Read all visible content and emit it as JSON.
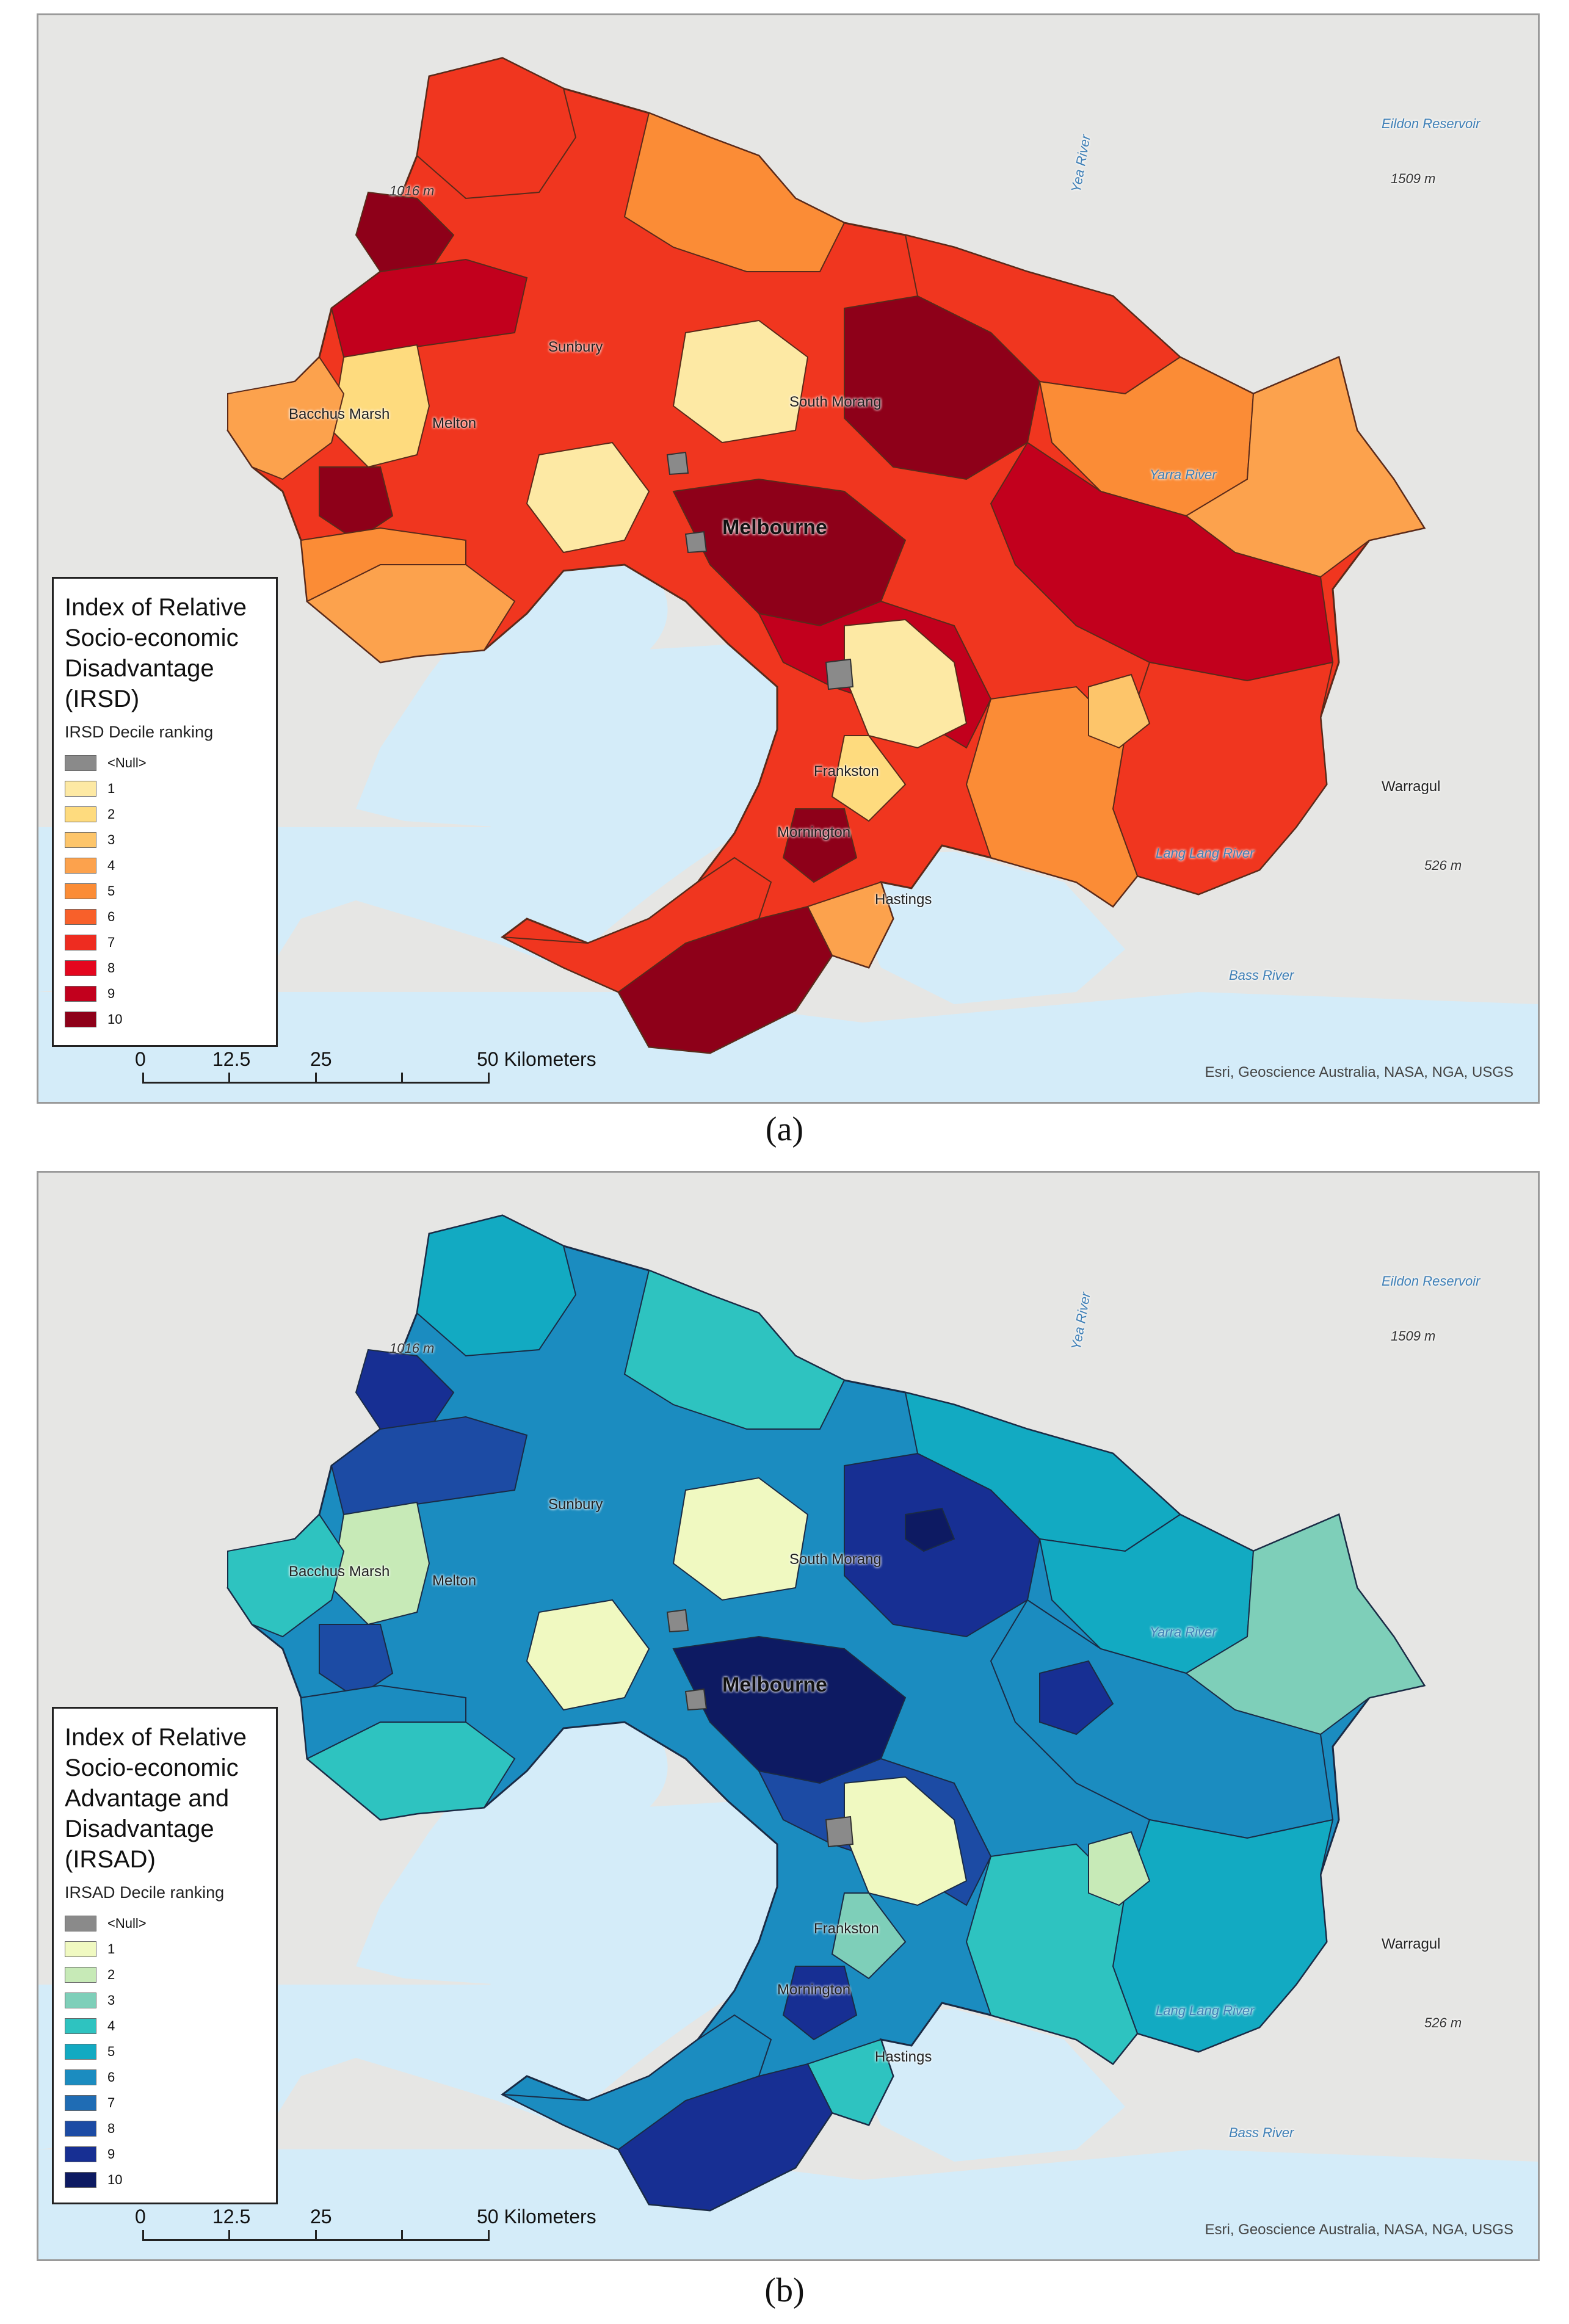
{
  "panels": [
    {
      "id": "a",
      "caption": "(a)",
      "legend": {
        "title": "Index of Relative Socio-economic Disadvantage (IRSD)",
        "subtitle": "IRSD Decile ranking",
        "null_label": "<Null>",
        "deciles": [
          "1",
          "2",
          "3",
          "4",
          "5",
          "6",
          "7",
          "8",
          "9",
          "10"
        ],
        "colors": [
          "#8a8a8a",
          "#fde9a4",
          "#fedb7e",
          "#fdc56a",
          "#fca24d",
          "#fb8c36",
          "#f8602a",
          "#ee2c20",
          "#e4061e",
          "#c2001d",
          "#8e0019"
        ]
      }
    },
    {
      "id": "b",
      "caption": "(b)",
      "legend": {
        "title": "Index of Relative Socio-economic Advantage and Disadvantage (IRSAD)",
        "subtitle": "IRSAD Decile ranking",
        "null_label": "<Null>",
        "deciles": [
          "1",
          "2",
          "3",
          "4",
          "5",
          "6",
          "7",
          "8",
          "9",
          "10"
        ],
        "colors": [
          "#8a8a8a",
          "#f0f9c1",
          "#c7eab7",
          "#7ecfb9",
          "#2ec3c0",
          "#12aac2",
          "#1b8cc0",
          "#1f6cb4",
          "#1c4ba4",
          "#172f93",
          "#0d1a62"
        ]
      }
    }
  ],
  "scale": {
    "ticks": [
      "0",
      "12.5",
      "25",
      "50 Kilometers"
    ]
  },
  "attribution": "Esri, Geoscience Australia, NASA, NGA, USGS",
  "places": {
    "melbourne": "Melbourne",
    "sunbury": "Sunbury",
    "bacchus_marsh": "Bacchus Marsh",
    "melton": "Melton",
    "south_morang": "South Morang",
    "frankston": "Frankston",
    "mornington": "Mornington",
    "hastings": "Hastings",
    "warragul": "Warragul",
    "yarra_river": "Yarra River",
    "yea_river": "Yea River",
    "eildon_reservoir": "Eildon Reservoir",
    "lang_lang_river": "Lang Lang River",
    "bass_river": "Bass River",
    "elev_1509": "1509 m",
    "elev_526": "526 m",
    "elev_1016": "1016 m"
  }
}
